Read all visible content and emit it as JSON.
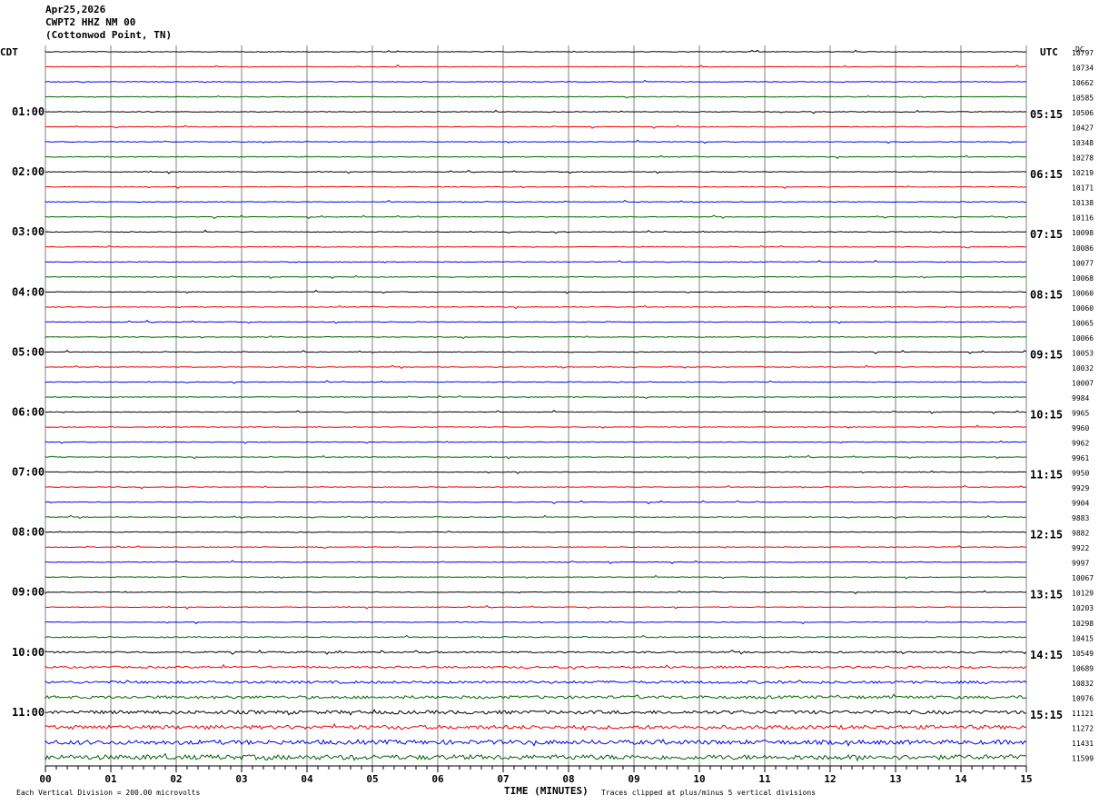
{
  "header": {
    "date": "Apr25,2026",
    "station": "CWPT2 HHZ NM 00",
    "location": "(Cottonwod Point, TN)"
  },
  "chart_data": {
    "type": "line",
    "title": "",
    "xlabel": "TIME (MINUTES)",
    "x_ticks": [
      "00",
      "01",
      "02",
      "03",
      "04",
      "05",
      "06",
      "07",
      "08",
      "09",
      "10",
      "11",
      "12",
      "13",
      "14",
      "15"
    ],
    "xlim": [
      0,
      15
    ],
    "left_axis_label": "CDT",
    "right_axis_label": "UTC",
    "dc_label": "DC",
    "left_time_labels": [
      "01:00",
      "02:00",
      "03:00",
      "04:00",
      "05:00",
      "06:00",
      "07:00",
      "08:00",
      "09:00",
      "10:00",
      "11:00"
    ],
    "right_time_labels": [
      "05:15",
      "06:15",
      "07:15",
      "08:15",
      "09:15",
      "10:15",
      "11:15",
      "12:15",
      "13:15",
      "14:15",
      "15:15"
    ],
    "trace_colors": [
      "#000000",
      "#ee0000",
      "#0000ee",
      "#006600"
    ],
    "dc_offsets": [
      10797,
      10734,
      10662,
      10585,
      10506,
      10427,
      10348,
      10278,
      10219,
      10171,
      10138,
      10116,
      10098,
      10086,
      10077,
      10068,
      10060,
      10060,
      10065,
      10066,
      10053,
      10032,
      10007,
      9984,
      9965,
      9960,
      9962,
      9961,
      9950,
      9929,
      9904,
      9883,
      9882,
      9922,
      9997,
      10067,
      10129,
      10203,
      10298,
      10415,
      10549,
      10689,
      10832,
      10976,
      11121,
      11272,
      11431,
      11599
    ],
    "trace_count": 48,
    "minutes_per_trace": 15,
    "footer_left": "Each Vertical Division =  200.00 microvolts",
    "footer_right": "Traces clipped at plus/minus 5 vertical divisions"
  }
}
